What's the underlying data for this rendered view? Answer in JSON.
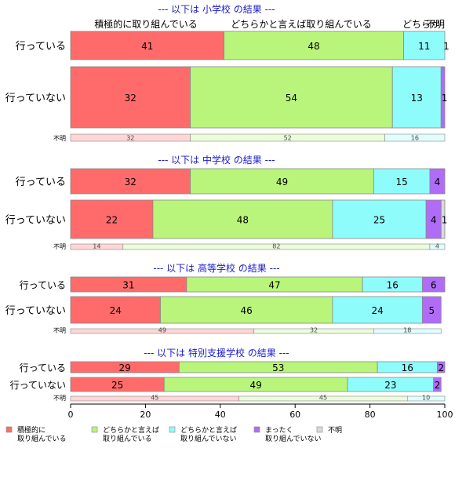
{
  "colors": {
    "positive": "#ff6b6b",
    "somewhat_positive": "#b9f57a",
    "somewhat_negative": "#8ffcfc",
    "negative": "#b06cf7",
    "unknown": "#d9d9d9",
    "title": "#1a1acd",
    "border": "#888888"
  },
  "chart_data": {
    "type": "bar",
    "orientation": "horizontal",
    "stacked": true,
    "xlim": [
      0,
      100
    ],
    "xticks": [
      0,
      20,
      40,
      60,
      80,
      100
    ],
    "header_labels": [
      "積極的に取り組んでいる",
      "どちらかと言えば取り組んでいる",
      "どちらか",
      "不明"
    ],
    "legend": [
      {
        "label": "積極的に\n取り組んでいる",
        "color_key": "positive"
      },
      {
        "label": "どちらかと言えば\n取り組んでいる",
        "color_key": "somewhat_positive"
      },
      {
        "label": "どちらかと言えば\n取り組んでいない",
        "color_key": "somewhat_negative"
      },
      {
        "label": "まったく\n取り組んでいない",
        "color_key": "negative"
      },
      {
        "label": "不明",
        "color_key": "unknown"
      }
    ],
    "groups": [
      {
        "title": "--- 以下は 小学校 の結果 ---",
        "bars": [
          {
            "label": "行っている",
            "values": [
              41,
              48,
              11,
              1
            ]
          },
          {
            "label": "行っていない",
            "values": [
              32,
              54,
              13,
              1
            ]
          }
        ],
        "unknown_label": "不明",
        "unknown_values": [
          32,
          52,
          16
        ]
      },
      {
        "title": "--- 以下は 中学校 の結果 ---",
        "bars": [
          {
            "label": "行っている",
            "values": [
              32,
              49,
              15,
              4
            ]
          },
          {
            "label": "行っていない",
            "values": [
              22,
              48,
              25,
              4,
              1
            ]
          }
        ],
        "unknown_label": "不明",
        "unknown_values": [
          14,
          82,
          4
        ]
      },
      {
        "title": "--- 以下は 高等学校 の結果 ---",
        "bars": [
          {
            "label": "行っている",
            "values": [
              31,
              47,
              16,
              6
            ]
          },
          {
            "label": "行っていない",
            "values": [
              24,
              46,
              24,
              5
            ]
          }
        ],
        "unknown_label": "不明",
        "unknown_values": [
          49,
          32,
          18
        ]
      },
      {
        "title": "--- 以下は 特別支援学校 の結果 ---",
        "bars": [
          {
            "label": "行っている",
            "values": [
              29,
              53,
              16,
              2
            ]
          },
          {
            "label": "行っていない",
            "values": [
              25,
              49,
              23,
              2
            ]
          }
        ],
        "unknown_label": "不明",
        "unknown_values": [
          45,
          45,
          10
        ]
      }
    ]
  }
}
